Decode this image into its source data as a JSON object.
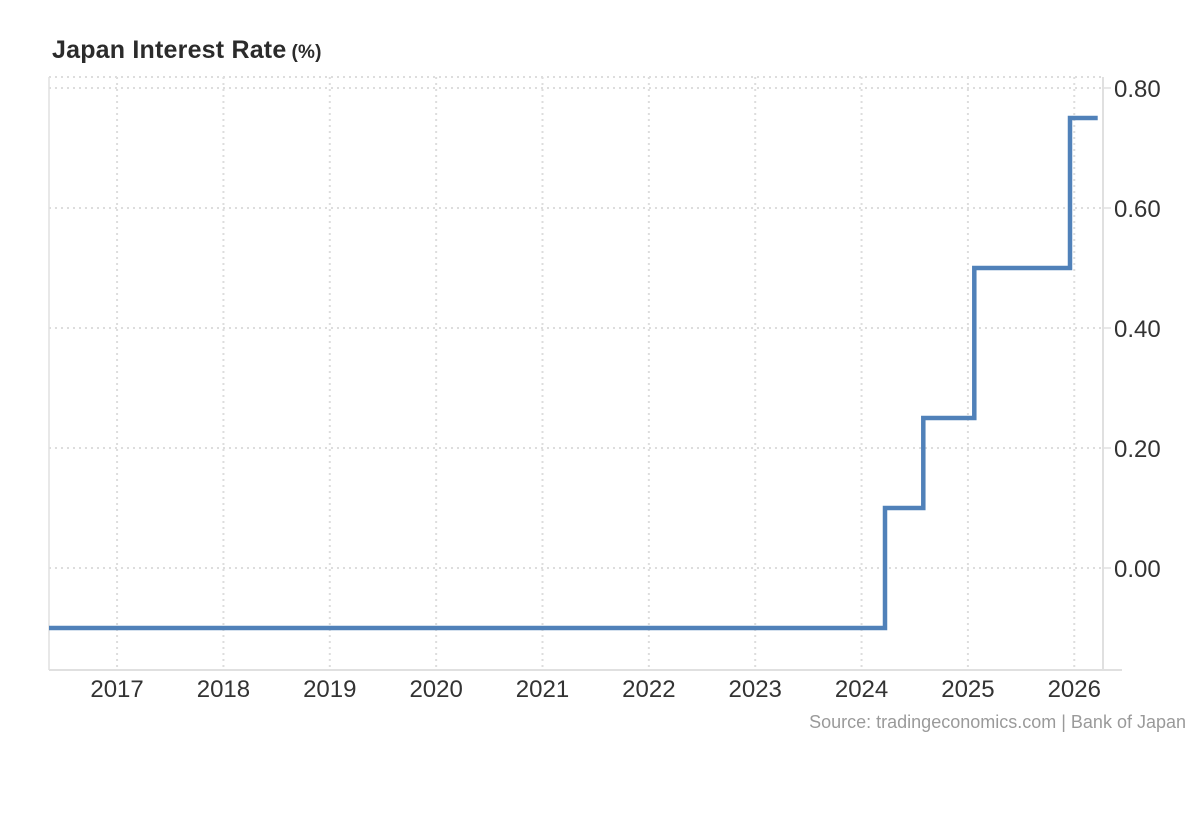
{
  "header": {
    "title": "Japan Interest Rate",
    "unit_suffix": "(%)"
  },
  "footer": {
    "source_text": "Source: tradingeconomics.com | Bank of Japan"
  },
  "chart_data": {
    "type": "line",
    "step": true,
    "title": "Japan Interest Rate (%)",
    "xlabel": "",
    "ylabel": "",
    "xlim": [
      2016.36,
      2026.27
    ],
    "ylim": [
      -0.17,
      0.8183
    ],
    "grid": "dotted",
    "legend_position": "none",
    "x_ticks": [
      {
        "value": 2017,
        "label": "2017"
      },
      {
        "value": 2018,
        "label": "2018"
      },
      {
        "value": 2019,
        "label": "2019"
      },
      {
        "value": 2020,
        "label": "2020"
      },
      {
        "value": 2021,
        "label": "2021"
      },
      {
        "value": 2022,
        "label": "2022"
      },
      {
        "value": 2023,
        "label": "2023"
      },
      {
        "value": 2024,
        "label": "2024"
      },
      {
        "value": 2025,
        "label": "2025"
      },
      {
        "value": 2026,
        "label": "2026"
      }
    ],
    "y_ticks": [
      {
        "value": 0.0,
        "label": "0.00"
      },
      {
        "value": 0.2,
        "label": "0.20"
      },
      {
        "value": 0.4,
        "label": "0.40"
      },
      {
        "value": 0.6,
        "label": "0.60"
      },
      {
        "value": 0.8,
        "label": "0.80"
      }
    ],
    "series": [
      {
        "name": "Japan Interest Rate",
        "color": "#5081B9",
        "line_width": 4.5,
        "points": [
          {
            "x": 2016.36,
            "y": -0.1
          },
          {
            "x": 2024.22,
            "y": -0.1
          },
          {
            "x": 2024.22,
            "y": 0.1
          },
          {
            "x": 2024.58,
            "y": 0.1
          },
          {
            "x": 2024.58,
            "y": 0.25
          },
          {
            "x": 2025.06,
            "y": 0.25
          },
          {
            "x": 2025.06,
            "y": 0.5
          },
          {
            "x": 2025.96,
            "y": 0.5
          },
          {
            "x": 2025.96,
            "y": 0.75
          },
          {
            "x": 2026.22,
            "y": 0.75
          }
        ]
      }
    ],
    "colors": {
      "line": "#5081B9",
      "grid": "#dddddd",
      "border": "#e0e0e0",
      "tick_label": "#333333",
      "title": "#2b2b2b",
      "source": "#9a9a9a",
      "background": "#ffffff"
    }
  }
}
